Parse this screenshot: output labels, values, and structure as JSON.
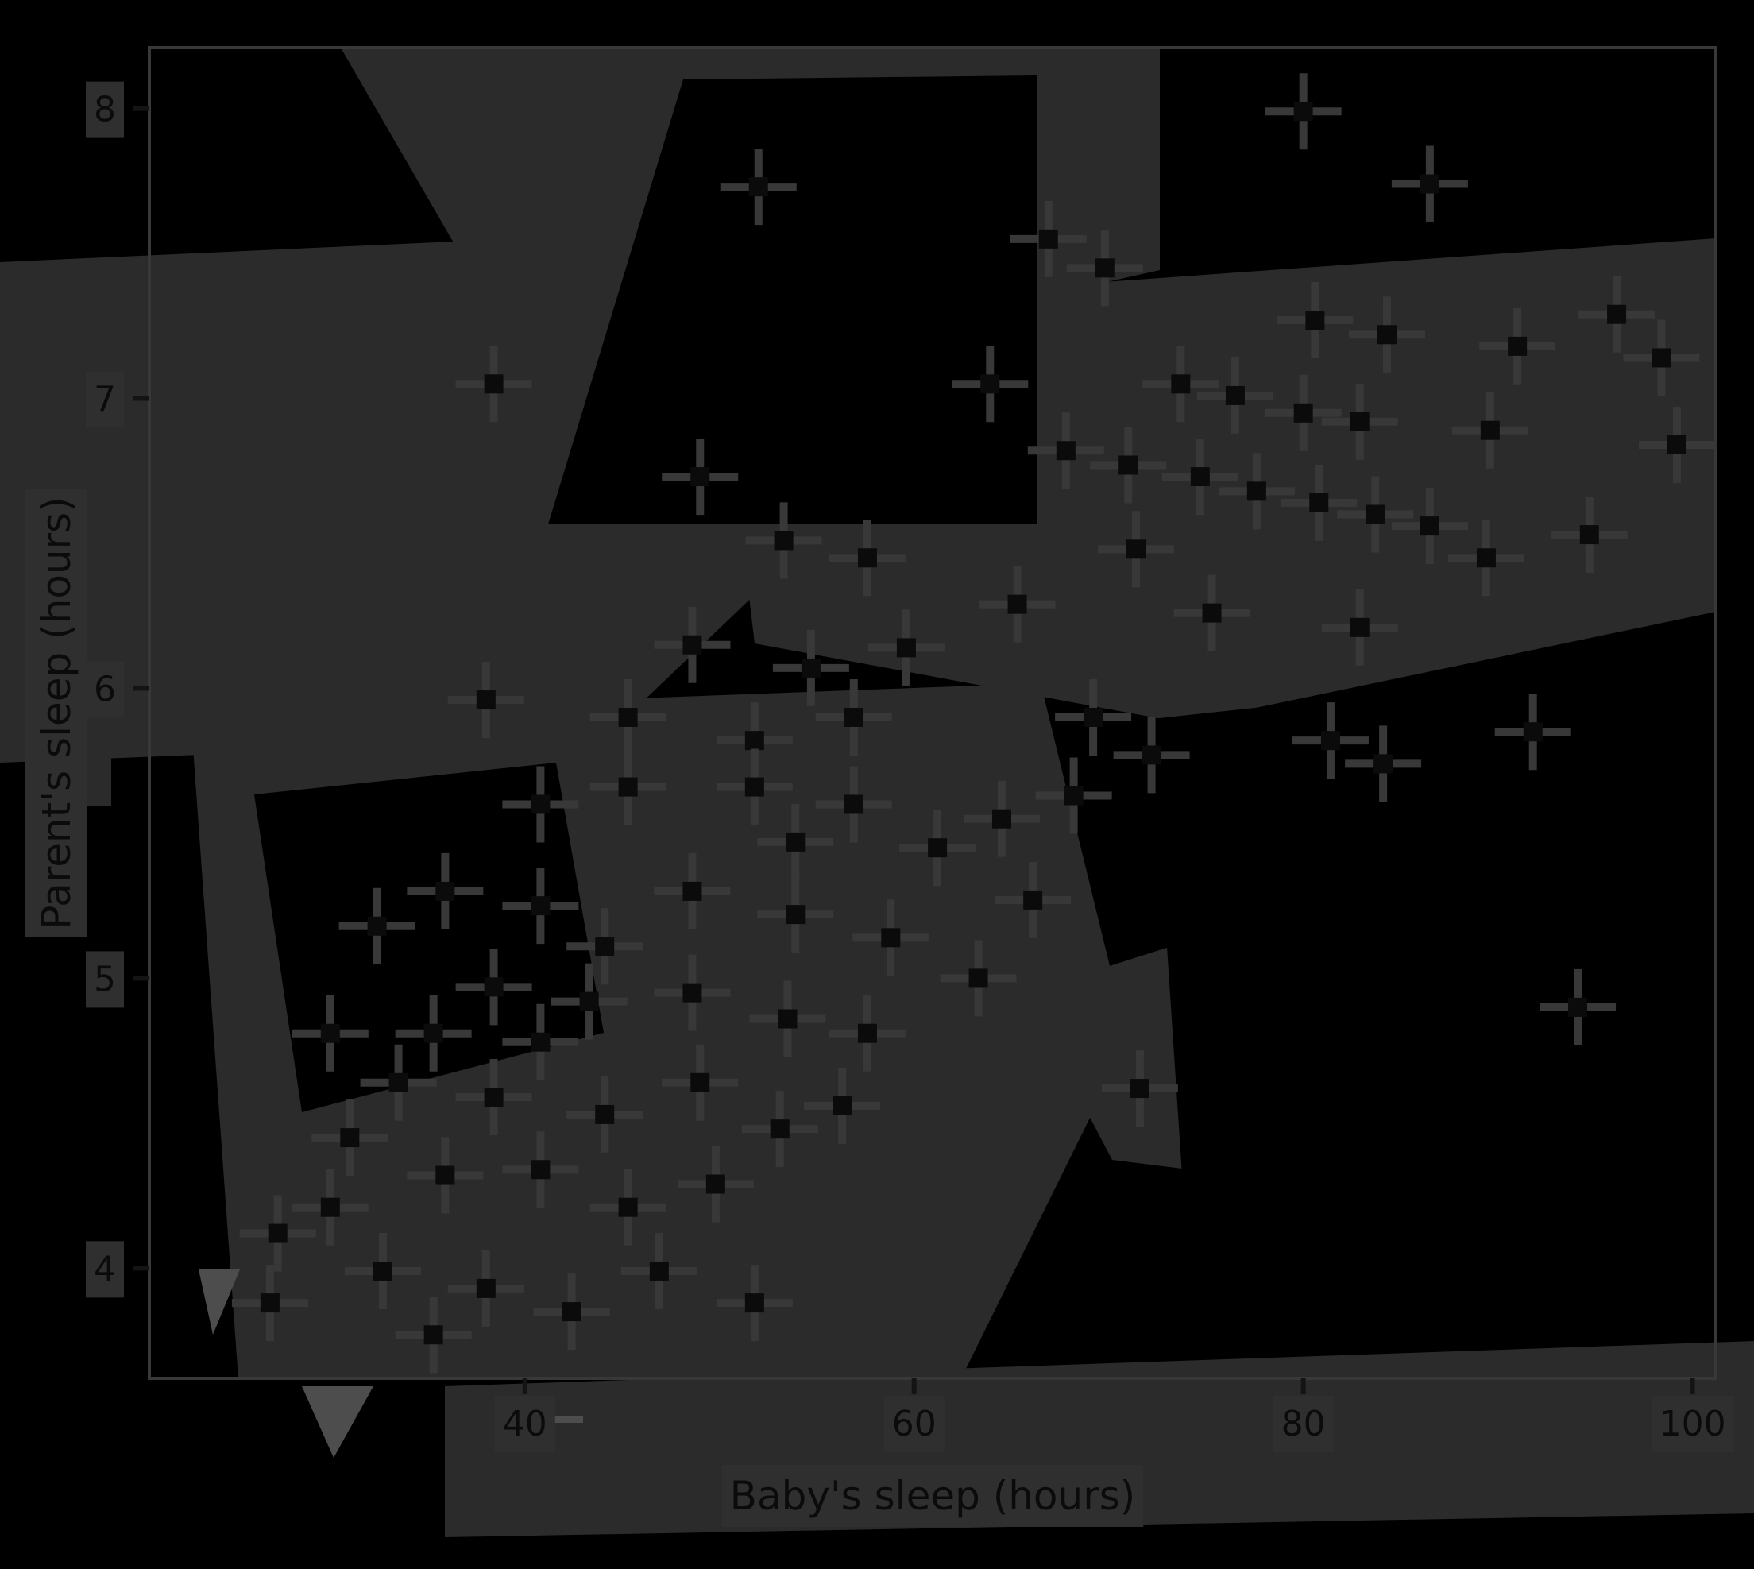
{
  "figure": {
    "background": "#000000",
    "ink": "#383838",
    "ink_dark": "#0b0b0b",
    "halo": "#2f2f2f",
    "artifact": "#2b2b2b",
    "artifact_light": "#4d4d4d",
    "tick_color": "#141414"
  },
  "chart_data": {
    "type": "scatter",
    "title": "",
    "xlabel": "Baby's sleep (hours)",
    "ylabel": "Parent's sleep (hours)",
    "xlim": [
      20.7,
      101.2
    ],
    "ylim": [
      3.62,
      8.21
    ],
    "xticks": [
      40,
      60,
      80,
      100
    ],
    "yticks": [
      8,
      7,
      6,
      5,
      4
    ],
    "grid": false,
    "legend_position": "none",
    "marker": "plus",
    "points": [
      [
        80.0,
        7.99
      ],
      [
        86.5,
        7.74
      ],
      [
        52.0,
        7.73
      ],
      [
        66.9,
        7.55
      ],
      [
        69.8,
        7.45
      ],
      [
        96.1,
        7.29
      ],
      [
        80.6,
        7.27
      ],
      [
        84.3,
        7.22
      ],
      [
        91.0,
        7.18
      ],
      [
        98.4,
        7.14
      ],
      [
        73.7,
        7.05
      ],
      [
        63.9,
        7.05
      ],
      [
        76.5,
        7.01
      ],
      [
        80.0,
        6.95
      ],
      [
        82.9,
        6.92
      ],
      [
        89.6,
        6.89
      ],
      [
        99.2,
        6.84
      ],
      [
        67.8,
        6.82
      ],
      [
        71.0,
        6.77
      ],
      [
        74.7,
        6.73
      ],
      [
        77.6,
        6.68
      ],
      [
        80.8,
        6.64
      ],
      [
        83.7,
        6.6
      ],
      [
        86.5,
        6.56
      ],
      [
        94.7,
        6.53
      ],
      [
        49.0,
        6.73
      ],
      [
        38.4,
        7.05
      ],
      [
        89.4,
        6.45
      ],
      [
        71.4,
        6.48
      ],
      [
        57.6,
        6.45
      ],
      [
        53.3,
        6.51
      ],
      [
        48.6,
        6.15
      ],
      [
        54.7,
        6.07
      ],
      [
        65.3,
        6.29
      ],
      [
        75.3,
        6.26
      ],
      [
        82.9,
        6.21
      ],
      [
        59.6,
        6.14
      ],
      [
        45.3,
        5.9
      ],
      [
        51.8,
        5.82
      ],
      [
        56.9,
        5.9
      ],
      [
        69.2,
        5.9
      ],
      [
        72.2,
        5.77
      ],
      [
        81.4,
        5.82
      ],
      [
        38.0,
        5.96
      ],
      [
        40.8,
        5.6
      ],
      [
        45.3,
        5.66
      ],
      [
        51.8,
        5.66
      ],
      [
        56.9,
        5.6
      ],
      [
        53.9,
        5.47
      ],
      [
        64.5,
        5.55
      ],
      [
        61.2,
        5.45
      ],
      [
        68.2,
        5.63
      ],
      [
        35.9,
        5.3
      ],
      [
        40.8,
        5.25
      ],
      [
        48.6,
        5.3
      ],
      [
        53.9,
        5.22
      ],
      [
        58.8,
        5.14
      ],
      [
        44.1,
        5.11
      ],
      [
        66.1,
        5.27
      ],
      [
        32.4,
        5.18
      ],
      [
        38.4,
        4.97
      ],
      [
        43.3,
        4.92
      ],
      [
        48.6,
        4.95
      ],
      [
        53.5,
        4.86
      ],
      [
        35.3,
        4.81
      ],
      [
        40.8,
        4.78
      ],
      [
        57.6,
        4.81
      ],
      [
        30.0,
        4.81
      ],
      [
        63.3,
        5.0
      ],
      [
        33.5,
        4.64
      ],
      [
        38.4,
        4.59
      ],
      [
        44.1,
        4.53
      ],
      [
        49.0,
        4.64
      ],
      [
        53.1,
        4.48
      ],
      [
        31.0,
        4.45
      ],
      [
        56.3,
        4.56
      ],
      [
        35.9,
        4.32
      ],
      [
        40.8,
        4.34
      ],
      [
        45.3,
        4.21
      ],
      [
        30.0,
        4.21
      ],
      [
        49.8,
        4.29
      ],
      [
        27.3,
        4.12
      ],
      [
        32.7,
        3.99
      ],
      [
        38.0,
        3.93
      ],
      [
        42.4,
        3.85
      ],
      [
        26.9,
        3.88
      ],
      [
        35.3,
        3.77
      ],
      [
        46.9,
        3.99
      ],
      [
        51.8,
        3.88
      ],
      [
        94.1,
        4.9
      ],
      [
        71.6,
        4.62
      ],
      [
        84.1,
        5.74
      ],
      [
        91.8,
        5.85
      ]
    ]
  }
}
